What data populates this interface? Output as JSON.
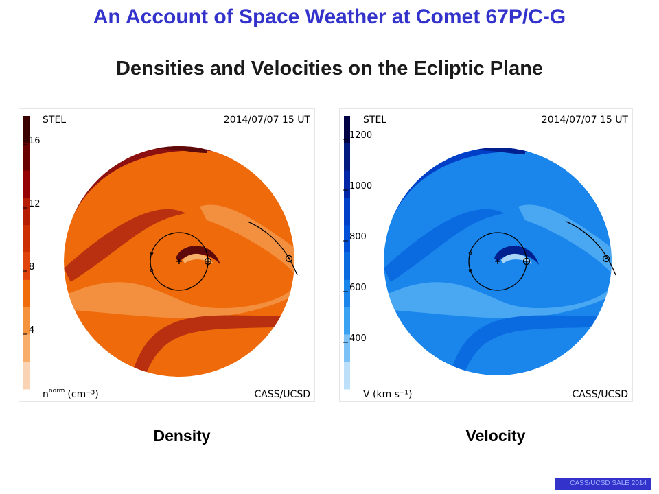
{
  "header": {
    "title": "An Account of Space Weather at Comet 67P/C-G",
    "subtitle": "Densities and Velocities on the Ecliptic Plane"
  },
  "panels": [
    {
      "caption": "Density",
      "top_left_label": "STEL",
      "timestamp": "2014/07/07 15 UT",
      "credit": "CASS/UCSD",
      "unit_base": "n",
      "unit_sup": "norm",
      "unit_rest": "(cm⁻³)",
      "ticks": [
        "16",
        "12",
        "8",
        "4"
      ],
      "colorbar_colors": [
        "#3a0000",
        "#6b0000",
        "#950000",
        "#b51e00",
        "#cc3000",
        "#e0440a",
        "#f06b0a",
        "#f5923c",
        "#f8ad6a",
        "#fad3b5"
      ],
      "field_colors": {
        "base": "#ee6a0a",
        "dark": "#b83010",
        "darker": "#8c1010",
        "darkest": "#5e0a0a",
        "light": "#f39040",
        "lighter": "#f7b068"
      }
    },
    {
      "caption": "Velocity",
      "top_left_label": "STEL",
      "timestamp": "2014/07/07 15 UT",
      "credit": "CASS/UCSD",
      "unit_text": "V (km s⁻¹)",
      "ticks": [
        "1200",
        "1000",
        "800",
        "600",
        "400"
      ],
      "colorbar_colors": [
        "#000044",
        "#001a80",
        "#0026a8",
        "#0040c8",
        "#0050d8",
        "#0a6ae0",
        "#1a86ec",
        "#3aa2f2",
        "#7cc2f6",
        "#bde0fa"
      ],
      "field_colors": {
        "base": "#1a86ec",
        "dark": "#0a6ae0",
        "darker": "#0040c8",
        "darkest": "#00208f",
        "light": "#4aa8f2",
        "lighter": "#a8d4f8"
      }
    }
  ],
  "footer": {
    "text": "CASS/UCSD SALE 2014"
  }
}
